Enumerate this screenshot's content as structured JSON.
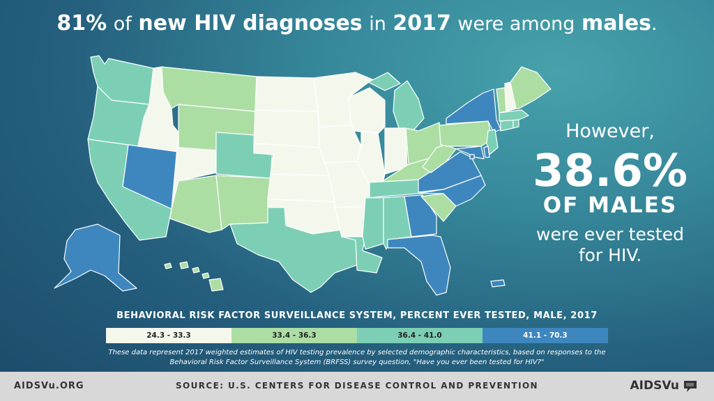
{
  "headline": {
    "pct": "81%",
    "of": "of",
    "bold1": "new HIV diagnoses",
    "in": "in",
    "year": "2017",
    "were_among": "were among",
    "males": "males",
    "period": "."
  },
  "callout": {
    "however": "However,",
    "percent": "38.6%",
    "of_males": "OF MALES",
    "line1": "were ever tested",
    "line2": "for HIV."
  },
  "legend": {
    "title": "BEHAVIORAL RISK FACTOR SURVEILLANCE SYSTEM, PERCENT EVER TESTED, MALE, 2017",
    "bins": [
      {
        "label": "24.3 - 33.3",
        "color": "#f4f8ec",
        "text_color": "#222222"
      },
      {
        "label": "33.4 - 36.3",
        "color": "#acdea4",
        "text_color": "#222222"
      },
      {
        "label": "36.4 - 41.0",
        "color": "#7ccfb5",
        "text_color": "#222222"
      },
      {
        "label": "41.1 - 70.3",
        "color": "#3e87be",
        "text_color": "#ffffff"
      }
    ]
  },
  "note": {
    "line1": "These data represent 2017 weighted estimates of HIV testing prevalence by selected demographic characteristics, based on responses to the",
    "line2": "Behavioral Risk Factor Surveillance System (BRFSS) survey question, \"Have you ever been tested for HIV?\""
  },
  "footer": {
    "site": "AIDSVu.ORG",
    "source": "SOURCE: U.S. CENTERS FOR DISEASE CONTROL AND PREVENTION",
    "logo": "AIDSVu"
  },
  "states": {
    "WA": 2,
    "OR": 2,
    "CA": 2,
    "ID": 0,
    "NV": 3,
    "MT": 1,
    "WY": 1,
    "UT": 0,
    "AZ": 1,
    "CO": 2,
    "NM": 1,
    "ND": 0,
    "SD": 0,
    "NE": 0,
    "KS": 0,
    "OK": 0,
    "TX": 2,
    "MN": 0,
    "IA": 0,
    "MO": 0,
    "AR": 0,
    "LA": 2,
    "WI": 0,
    "IL": 0,
    "MI": 2,
    "IN": 0,
    "OH": 1,
    "KY": 1,
    "TN": 2,
    "MS": 2,
    "AL": 2,
    "GA": 3,
    "FL": 3,
    "SC": 1,
    "NC": 3,
    "VA": 3,
    "WV": 1,
    "PA": 1,
    "NY": 3,
    "NJ": 2,
    "DE": 3,
    "MD": 3,
    "DC": 3,
    "CT": 2,
    "RI": 2,
    "MA": 2,
    "VT": 1,
    "NH": 0,
    "ME": 1,
    "AK": 3,
    "HI": 1,
    "PR": 3
  }
}
